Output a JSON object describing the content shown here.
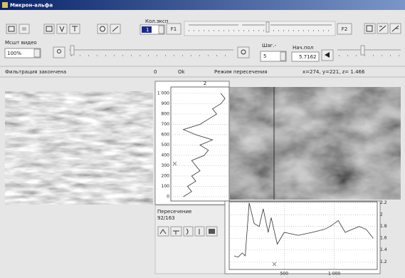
{
  "window": {
    "title": "Микрон-альфа"
  },
  "toolbar": {
    "kol_label": "Кол.эксп",
    "kol_value": "1",
    "f1": "F1",
    "f2": "F2",
    "scale_label": "Мсшт видео",
    "scale_value": "100%",
    "step_label": "Шаг.-",
    "step_value": "5",
    "start_label": "Нач.пол",
    "start_value": "5.7162"
  },
  "status": {
    "message": "Фильтрация закончена",
    "code": "0",
    "result": "Ok",
    "mode": "Режим пересечения",
    "coords": "x=274, y=221, z= 1.466"
  },
  "section": {
    "title": "Пересечение",
    "count": "92/163"
  },
  "chart_data": [
    {
      "type": "line",
      "title": "2",
      "color": "#333333",
      "y": [
        0,
        50,
        100,
        150,
        200,
        250,
        300,
        350,
        400,
        450,
        500,
        550,
        600,
        650,
        700,
        750,
        800,
        850,
        900,
        950,
        1000
      ],
      "values": [
        1.3,
        1.5,
        1.4,
        1.6,
        1.5,
        1.7,
        1.6,
        1.5,
        1.8,
        1.9,
        1.7,
        2.0,
        1.6,
        1.3,
        1.7,
        1.9,
        2.1,
        2.0,
        2.2,
        2.3,
        2.2
      ],
      "xlim": [
        1.0,
        2.4
      ],
      "ylim": [
        -76,
        1062
      ],
      "yticks": [
        0,
        100,
        200,
        300,
        400,
        500,
        600,
        700,
        800,
        900,
        {
          "value": 1000,
          "label": "1 000"
        }
      ],
      "grid": true
    },
    {
      "type": "line",
      "color": "#333333",
      "x": [
        0,
        40,
        80,
        110,
        150,
        200,
        250,
        290,
        340,
        370,
        430,
        500,
        640,
        780,
        900,
        960,
        1040,
        1110,
        1180,
        1250,
        1320,
        1390
      ],
      "values": [
        1.3,
        1.28,
        1.35,
        1.3,
        2.2,
        1.85,
        1.8,
        2.1,
        1.7,
        1.95,
        1.5,
        1.7,
        1.65,
        1.7,
        1.75,
        1.8,
        1.9,
        1.7,
        1.75,
        1.8,
        1.75,
        1.6
      ],
      "xlim": [
        -50,
        1430
      ],
      "xticks": [
        500,
        {
          "value": 1000,
          "label": "1 000"
        }
      ],
      "ylim": [
        1.07,
        2.22
      ],
      "yticks": [
        1.2,
        1.4,
        1.6,
        1.8,
        2,
        2.2
      ],
      "grid": true
    }
  ]
}
